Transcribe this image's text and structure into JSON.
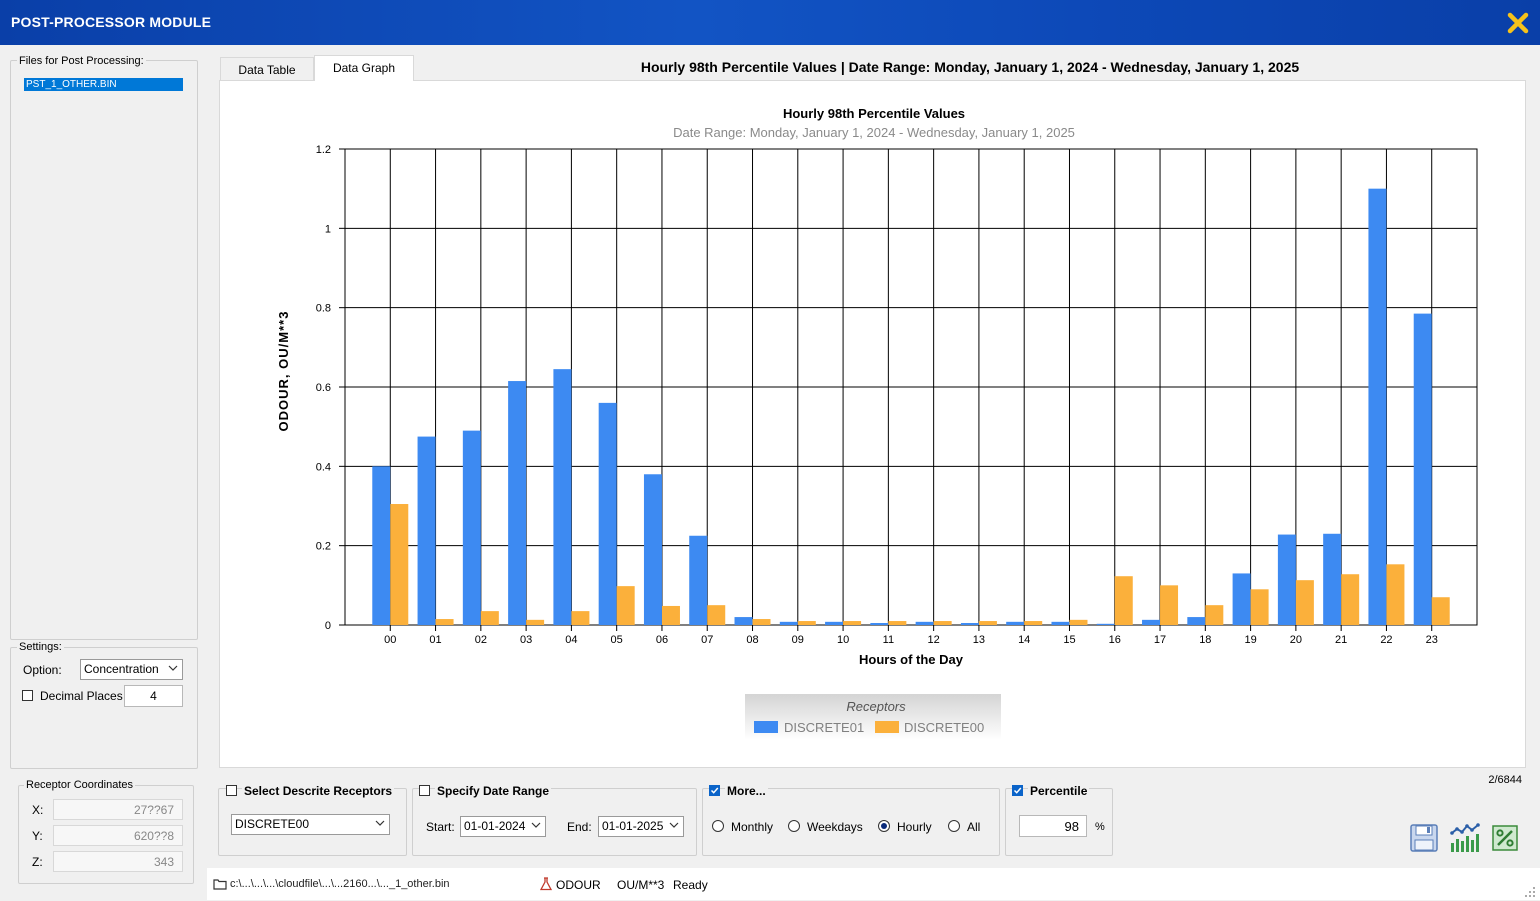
{
  "window": {
    "title": "POST-PROCESSOR MODULE"
  },
  "files": {
    "label": "Files for Post Processing:",
    "items": [
      "PST_1_OTHER.BIN"
    ]
  },
  "settings": {
    "label": "Settings:",
    "option_label": "Option:",
    "option_value": "Concentration",
    "decimal_label": "Decimal Places",
    "decimal_value": "4",
    "decimal_checked": false
  },
  "receptor_coords": {
    "label": "Receptor Coordinates",
    "x_label": "X:",
    "x_value": "27??67",
    "y_label": "Y:",
    "y_value": "620??8",
    "z_label": "Z:",
    "z_value": "343"
  },
  "tabs": [
    "Data Table",
    "Data Graph"
  ],
  "active_tab": "Data Graph",
  "header_title": "Hourly 98th Percentile Values | Date Range: Monday, January 1, 2024 - Wednesday, January 1, 2025",
  "chart_data": {
    "type": "bar",
    "title": "Hourly 98th Percentile Values",
    "subtitle": "Date Range: Monday, January 1, 2024 - Wednesday, January 1, 2025",
    "xlabel": "Hours of the Day",
    "ylabel": "ODOUR, OU/M**3",
    "ylim": [
      0,
      1.2
    ],
    "yticks": [
      "0",
      "0.2",
      "0.4",
      "0.6",
      "0.8",
      "1",
      "1.2"
    ],
    "categories": [
      "00",
      "01",
      "02",
      "03",
      "04",
      "05",
      "06",
      "07",
      "08",
      "09",
      "10",
      "11",
      "12",
      "13",
      "14",
      "15",
      "16",
      "17",
      "18",
      "19",
      "20",
      "21",
      "22",
      "23"
    ],
    "grid": true,
    "legend_title": "Receptors",
    "legend_position": "bottom-center",
    "series": [
      {
        "name": "DISCRETE01",
        "color": "#3d8af2",
        "values": [
          0.4,
          0.475,
          0.49,
          0.615,
          0.645,
          0.56,
          0.38,
          0.225,
          0.02,
          0.008,
          0.008,
          0.005,
          0.008,
          0.005,
          0.008,
          0.008,
          0.003,
          0.013,
          0.02,
          0.13,
          0.228,
          0.23,
          1.1,
          0.785
        ]
      },
      {
        "name": "DISCRETE00",
        "color": "#fbb03b",
        "values": [
          0.305,
          0.015,
          0.035,
          0.013,
          0.035,
          0.098,
          0.048,
          0.05,
          0.015,
          0.01,
          0.01,
          0.01,
          0.01,
          0.01,
          0.01,
          0.013,
          0.123,
          0.1,
          0.05,
          0.09,
          0.113,
          0.128,
          0.153,
          0.07
        ]
      }
    ]
  },
  "page_counter": "2/6844",
  "select_receptors": {
    "label": "Select Descrite Receptors",
    "checked": false,
    "value": "DISCRETE00"
  },
  "date_range": {
    "label": "Specify Date Range",
    "checked": false,
    "start_label": "Start:",
    "start_value": "01-01-2024",
    "end_label": "End:",
    "end_value": "01-01-2025"
  },
  "more": {
    "label": "More...",
    "checked": true,
    "options": [
      "Monthly",
      "Weekdays",
      "Hourly",
      "All"
    ],
    "selected": "Hourly"
  },
  "percentile": {
    "label": "Percentile",
    "checked": true,
    "value": "98",
    "unit": "%"
  },
  "statusbar": {
    "path": "c:\\...\\...\\...\\cloudfile\\...\\...2160...\\..._1_other.bin",
    "pollutant": "ODOUR",
    "units": "OU/M**3",
    "status": "Ready"
  },
  "icons": {
    "save": "save-icon",
    "graph": "graph-icon",
    "percent": "percent-icon",
    "close": "close-icon",
    "folder": "folder-icon",
    "flask": "flask-icon"
  },
  "colors": {
    "titlebar": "#0d49b8",
    "selection": "#0078d7",
    "checkbox": "#0b64c9"
  }
}
